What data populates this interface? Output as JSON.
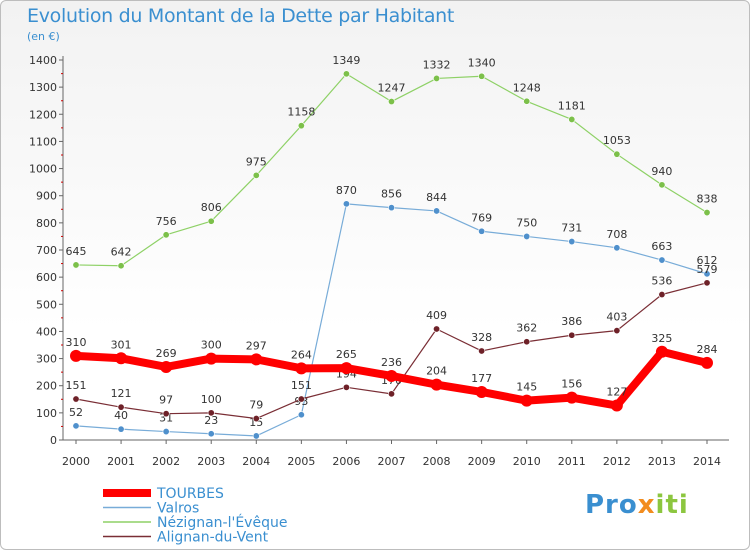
{
  "title": "Evolution du Montant de la Dette par Habitant",
  "unit": "(en €)",
  "brand": {
    "part1": "Pro",
    "part2": "x",
    "part3": "iti"
  },
  "chart_data": {
    "type": "line",
    "x": [
      "2000",
      "2001",
      "2002",
      "2003",
      "2004",
      "2005",
      "2006",
      "2007",
      "2008",
      "2009",
      "2010",
      "2011",
      "2012",
      "2013",
      "2014"
    ],
    "ylim": [
      0,
      1400
    ],
    "yticks": [
      0,
      100,
      200,
      300,
      400,
      500,
      600,
      700,
      800,
      900,
      1000,
      1100,
      1200,
      1300,
      1400
    ],
    "grid": false,
    "legend_position": "bottom-left",
    "series": [
      {
        "name": "Nézignan-l'Évêque",
        "color": "#8ed166",
        "marker": "#7cc04a",
        "width": 1.2,
        "values": [
          645,
          642,
          756,
          806,
          975,
          1158,
          1349,
          1247,
          1332,
          1340,
          1248,
          1181,
          1053,
          940,
          838
        ]
      },
      {
        "name": "Valros",
        "color": "#78acd8",
        "marker": "#4f90cc",
        "width": 1.2,
        "values": [
          52,
          40,
          31,
          23,
          15,
          93,
          870,
          856,
          844,
          769,
          750,
          731,
          708,
          663,
          612
        ]
      },
      {
        "name": "Alignan-du-Vent",
        "color": "#7a2e35",
        "marker": "#6e2128",
        "width": 1.2,
        "values": [
          151,
          121,
          97,
          100,
          79,
          151,
          194,
          170,
          409,
          328,
          362,
          386,
          403,
          536,
          579
        ]
      },
      {
        "name": "TOURBES",
        "color": "#ff0000",
        "marker": "#ff0000",
        "width": 8,
        "values": [
          310,
          301,
          269,
          300,
          297,
          264,
          265,
          236,
          204,
          177,
          145,
          156,
          127,
          325,
          284
        ]
      }
    ]
  }
}
